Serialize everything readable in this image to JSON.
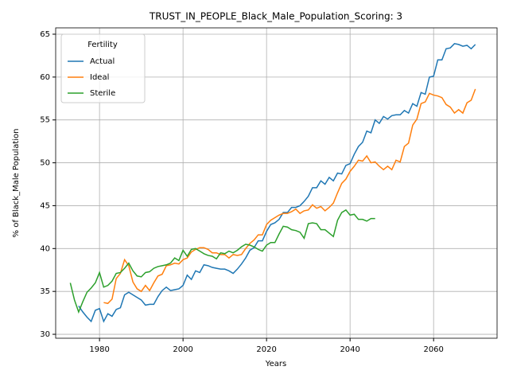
{
  "chart_data": {
    "type": "line",
    "title": "TRUST_IN_PEOPLE_Black_Male_Population_Scoring: 3",
    "xlabel": "Years",
    "ylabel": "% of Black_Male Population",
    "legend_title": "Fertility",
    "legend": "upper left",
    "grid": true,
    "xlim": [
      1969.5,
      2075.2
    ],
    "ylim": [
      29.54,
      65.74
    ],
    "xticks": [
      1980,
      2000,
      2020,
      2040,
      2060
    ],
    "yticks": [
      30,
      35,
      40,
      45,
      50,
      55,
      60,
      65
    ],
    "series": [
      {
        "name": "Actual",
        "color": "#1f77b4",
        "x": [
          1975,
          1976,
          1977,
          1978,
          1979,
          1980,
          1981,
          1982,
          1983,
          1984,
          1985,
          1986,
          1987,
          1988,
          1989,
          1990,
          1991,
          1992,
          1993,
          1994,
          1995,
          1996,
          1997,
          1998,
          1999,
          2000,
          2001,
          2002,
          2003,
          2004,
          2005,
          2006,
          2007,
          2008,
          2009,
          2010,
          2011,
          2012,
          2013,
          2014,
          2015,
          2016,
          2017,
          2018,
          2019,
          2020,
          2021,
          2022,
          2023,
          2024,
          2025,
          2026,
          2027,
          2028,
          2029,
          2030,
          2031,
          2032,
          2033,
          2034,
          2035,
          2036,
          2037,
          2038,
          2039,
          2040,
          2041,
          2042,
          2043,
          2044,
          2045,
          2046,
          2047,
          2048,
          2049,
          2050,
          2051,
          2052,
          2053,
          2054,
          2055,
          2056,
          2057,
          2058,
          2059,
          2060,
          2061,
          2062,
          2063,
          2064,
          2065,
          2066,
          2067,
          2068,
          2069,
          2070
        ],
        "values": [
          33.3,
          32.6,
          32.0,
          31.5,
          32.8,
          33.0,
          31.5,
          32.4,
          32.1,
          32.9,
          33.1,
          34.6,
          34.9,
          34.6,
          34.3,
          34.0,
          33.4,
          33.5,
          33.5,
          34.4,
          35.1,
          35.5,
          35.1,
          35.2,
          35.3,
          35.7,
          36.9,
          36.4,
          37.4,
          37.2,
          38.1,
          38.0,
          37.8,
          37.7,
          37.6,
          37.6,
          37.4,
          37.1,
          37.6,
          38.2,
          38.9,
          39.8,
          40.1,
          40.9,
          40.9,
          42.0,
          42.8,
          43.0,
          43.4,
          44.2,
          44.2,
          44.8,
          44.8,
          45.0,
          45.5,
          46.1,
          47.1,
          47.1,
          47.9,
          47.5,
          48.3,
          47.9,
          48.8,
          48.7,
          49.7,
          49.9,
          51.0,
          51.9,
          52.4,
          53.7,
          53.5,
          55.0,
          54.6,
          55.4,
          55.1,
          55.5,
          55.6,
          55.6,
          56.1,
          55.8,
          56.9,
          56.6,
          58.2,
          58.0,
          60.0,
          60.1,
          62.0,
          62.0,
          63.3,
          63.4,
          63.9,
          63.8,
          63.6,
          63.7,
          63.3,
          63.8
        ]
      },
      {
        "name": "Ideal",
        "color": "#ff7f0e",
        "x": [
          1981,
          1982,
          1983,
          1984,
          1985,
          1986,
          1987,
          1988,
          1989,
          1990,
          1991,
          1992,
          1993,
          1994,
          1995,
          1996,
          1997,
          1998,
          1999,
          2000,
          2001,
          2002,
          2003,
          2004,
          2005,
          2006,
          2007,
          2008,
          2009,
          2010,
          2011,
          2012,
          2013,
          2014,
          2015,
          2016,
          2017,
          2018,
          2019,
          2020,
          2021,
          2022,
          2023,
          2024,
          2025,
          2026,
          2027,
          2028,
          2029,
          2030,
          2031,
          2032,
          2033,
          2034,
          2035,
          2036,
          2037,
          2038,
          2039,
          2040,
          2041,
          2042,
          2043,
          2044,
          2045,
          2046,
          2047,
          2048,
          2049,
          2050,
          2051,
          2052,
          2053,
          2054,
          2055,
          2056,
          2057,
          2058,
          2059,
          2060,
          2061,
          2062,
          2063,
          2064,
          2065,
          2066,
          2067,
          2068,
          2069,
          2070
        ],
        "values": [
          33.7,
          33.6,
          34.1,
          36.5,
          37.1,
          38.7,
          38.0,
          36.1,
          35.3,
          35.0,
          35.7,
          35.1,
          36.0,
          36.8,
          37.0,
          38.0,
          38.1,
          38.3,
          38.2,
          38.7,
          38.9,
          39.6,
          39.9,
          40.1,
          40.1,
          39.9,
          39.5,
          39.5,
          39.3,
          39.3,
          38.9,
          39.3,
          39.2,
          39.3,
          40.0,
          40.6,
          41.0,
          41.6,
          41.6,
          42.8,
          43.3,
          43.6,
          43.9,
          44.1,
          44.1,
          44.3,
          44.6,
          44.1,
          44.4,
          44.5,
          45.1,
          44.7,
          44.9,
          44.4,
          44.8,
          45.3,
          46.5,
          47.6,
          48.1,
          49.0,
          49.6,
          50.3,
          50.2,
          50.8,
          50.0,
          50.1,
          49.6,
          49.2,
          49.6,
          49.2,
          50.3,
          50.1,
          51.9,
          52.3,
          54.4,
          55.1,
          56.9,
          57.1,
          58.1,
          57.9,
          57.8,
          57.6,
          56.8,
          56.5,
          55.8,
          56.2,
          55.8,
          57.0,
          57.3,
          58.6
        ]
      },
      {
        "name": "Sterile",
        "color": "#2ca02c",
        "x": [
          1973,
          1974,
          1975,
          1976,
          1977,
          1978,
          1979,
          1980,
          1981,
          1982,
          1983,
          1984,
          1985,
          1986,
          1987,
          1988,
          1989,
          1990,
          1991,
          1992,
          1993,
          1994,
          1995,
          1996,
          1997,
          1998,
          1999,
          2000,
          2001,
          2002,
          2003,
          2004,
          2005,
          2006,
          2007,
          2008,
          2009,
          2010,
          2011,
          2012,
          2013,
          2014,
          2015,
          2016,
          2017,
          2018,
          2019,
          2020,
          2021,
          2022,
          2023,
          2024,
          2025,
          2026,
          2027,
          2028,
          2029,
          2030,
          2031,
          2032,
          2033,
          2034,
          2035,
          2036,
          2037,
          2038,
          2039,
          2040,
          2041,
          2042,
          2043,
          2044,
          2045,
          2046
        ],
        "values": [
          36.0,
          34.0,
          32.6,
          33.8,
          34.9,
          35.4,
          36.0,
          37.2,
          35.5,
          35.7,
          36.2,
          37.1,
          37.2,
          37.7,
          38.3,
          37.4,
          36.8,
          36.7,
          37.2,
          37.3,
          37.7,
          37.9,
          38.0,
          38.1,
          38.3,
          38.9,
          38.6,
          39.8,
          39.1,
          39.9,
          40.0,
          39.7,
          39.4,
          39.2,
          39.1,
          38.8,
          39.5,
          39.4,
          39.7,
          39.5,
          39.8,
          40.2,
          40.5,
          40.4,
          40.2,
          39.9,
          39.7,
          40.4,
          40.7,
          40.7,
          41.7,
          42.6,
          42.5,
          42.2,
          42.1,
          41.9,
          41.2,
          42.9,
          43.0,
          42.9,
          42.2,
          42.2,
          41.8,
          41.4,
          43.3,
          44.2,
          44.5,
          43.9,
          44.0,
          43.4,
          43.4,
          43.2,
          43.5,
          43.5
        ]
      }
    ]
  }
}
